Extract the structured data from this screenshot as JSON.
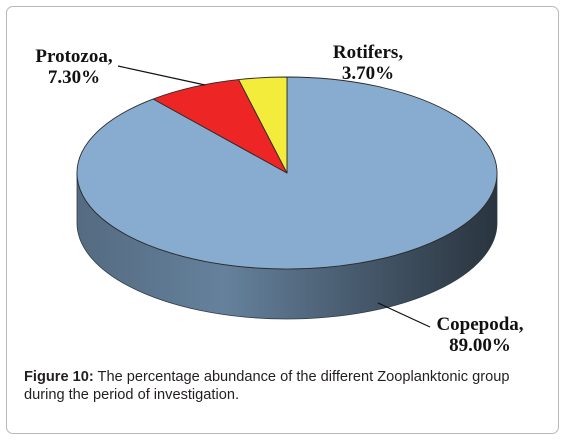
{
  "chart_data": {
    "type": "pie",
    "style": "3d",
    "slices": [
      {
        "name": "Copepoda",
        "value": 89.0,
        "value_label": "89.00%",
        "color": "#87acd0",
        "label_line1": "Copepoda,",
        "label_line2": "89.00%"
      },
      {
        "name": "Protozoa",
        "value": 7.3,
        "value_label": "7.30%",
        "color": "#ee2525",
        "label_line1": "Protozoa,",
        "label_line2": "7.30%"
      },
      {
        "name": "Rotifers",
        "value": 3.7,
        "value_label": "3.70%",
        "color": "#f4ec3a",
        "label_line1": "Rotifers,",
        "label_line2": "3.70%"
      }
    ],
    "legend": "none"
  },
  "caption": {
    "label": "Figure 10:",
    "text": " The percentage abundance of the different Zooplanktonic group during the period of investigation."
  }
}
